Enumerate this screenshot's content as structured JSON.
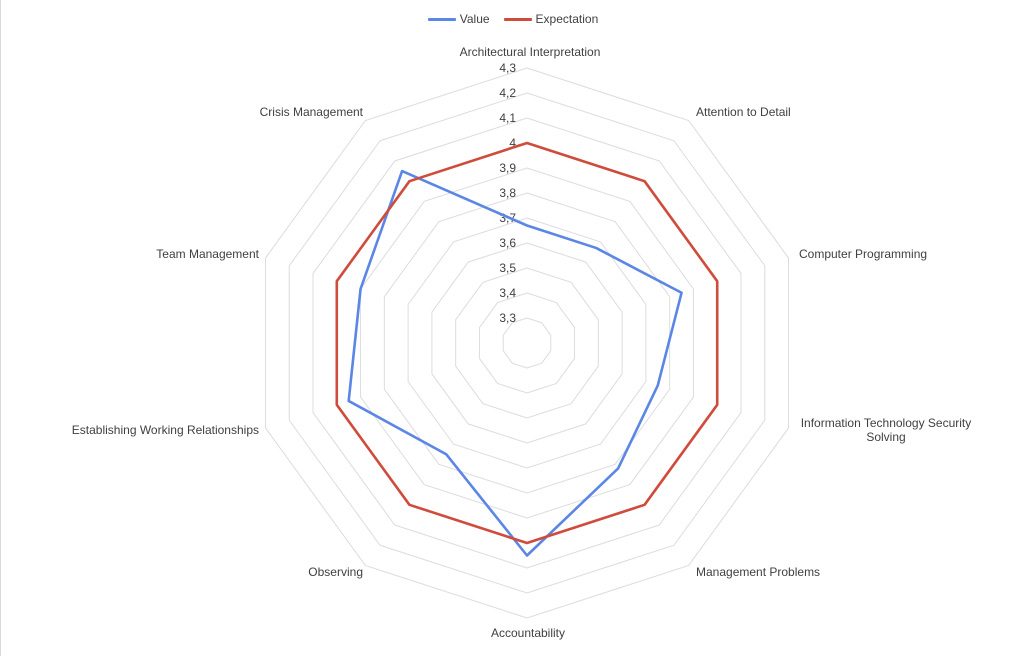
{
  "chart_data": {
    "type": "radar",
    "title": "",
    "categories": [
      "Architectural Interpretation",
      "Attention to Detail",
      "Computer Programming",
      "Information Technology Security Solving",
      "Management Problems",
      "Accountability",
      "Observing",
      "Establishing Working Relationships",
      "Team Management",
      "Crisis Management"
    ],
    "category_label_lines": [
      [
        "Architectural Interpretation"
      ],
      [
        "Attention to Detail"
      ],
      [
        "Computer Programming"
      ],
      [
        "Information Technology Security",
        "Solving"
      ],
      [
        "Management Problems"
      ],
      [
        "Accountability"
      ],
      [
        "Observing"
      ],
      [
        "Establishing Working Relationships"
      ],
      [
        "Team Management"
      ],
      [
        "Crisis Management"
      ]
    ],
    "axis": {
      "min": 3.2,
      "max": 4.3,
      "ticks": [
        3.3,
        3.4,
        3.5,
        3.6,
        3.7,
        3.8,
        3.9,
        4.0,
        4.1,
        4.2,
        4.3
      ],
      "tick_labels": [
        "3,3",
        "3,4",
        "3,5",
        "3,6",
        "3,7",
        "3,8",
        "3,9",
        "4",
        "4,1",
        "4,2",
        "4,3"
      ]
    },
    "series": [
      {
        "name": "Value",
        "color": "#5b86e5",
        "values": [
          3.67,
          3.67,
          3.85,
          3.75,
          3.82,
          4.05,
          3.75,
          3.95,
          3.9,
          4.05
        ]
      },
      {
        "name": "Expectation",
        "color": "#cf4b3b",
        "values": [
          4.0,
          4.0,
          4.0,
          4.0,
          4.0,
          4.0,
          4.0,
          4.0,
          4.0,
          4.0
        ]
      }
    ],
    "legend_position": "top",
    "grid": true
  }
}
